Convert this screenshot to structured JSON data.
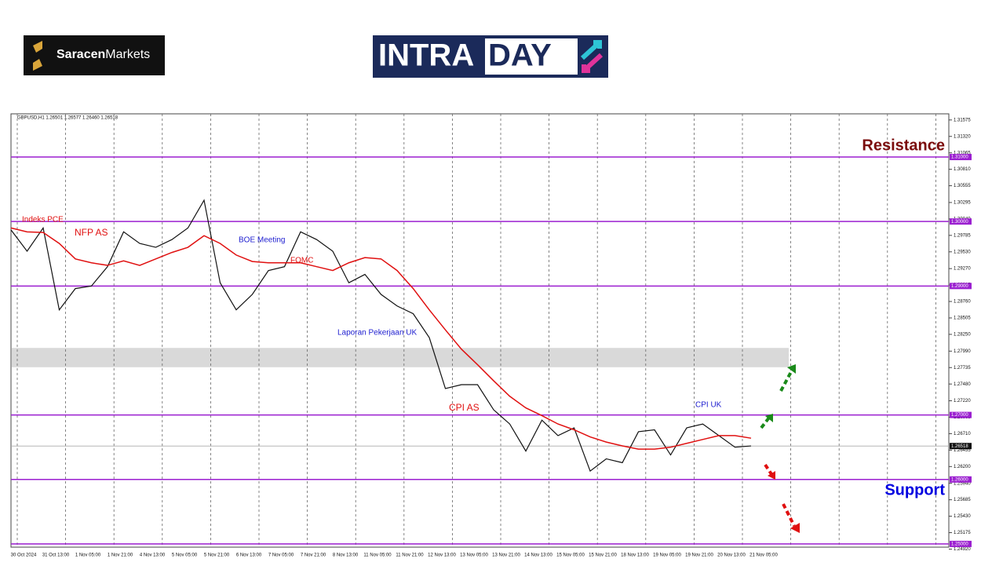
{
  "header": {
    "brand_bold": "Saracen",
    "brand_rest": "Markets",
    "logo_left": "INTRA",
    "logo_right": "DAY"
  },
  "chart_data": {
    "type": "line",
    "symbol_info": "GBPUSD,H1  1.26501 1.26577 1.26460 1.26518",
    "series": [
      {
        "name": "GBPUSD",
        "color": "#111111",
        "values": [
          1.2987,
          1.2954,
          1.299,
          1.2863,
          1.2896,
          1.29,
          1.293,
          1.2984,
          1.2966,
          1.296,
          1.2972,
          1.299,
          1.3033,
          1.2905,
          1.2863,
          1.2887,
          1.2924,
          1.293,
          1.2984,
          1.2972,
          1.2954,
          1.2905,
          1.2918,
          1.2887,
          1.2869,
          1.2857,
          1.282,
          1.2741,
          1.2747,
          1.2747,
          1.2708,
          1.2686,
          1.2644,
          1.2692,
          1.2668,
          1.268,
          1.2613,
          1.2632,
          1.2626,
          1.2674,
          1.2677,
          1.2638,
          1.268,
          1.2686,
          1.2668,
          1.265,
          1.2652
        ]
      },
      {
        "name": "MA",
        "color": "#e01010",
        "values": [
          1.299,
          1.2984,
          1.2983,
          1.2966,
          1.2942,
          1.2936,
          1.2932,
          1.2939,
          1.2932,
          1.2942,
          1.2952,
          1.296,
          1.2978,
          1.2966,
          1.2948,
          1.2938,
          1.2936,
          1.2936,
          1.2936,
          1.293,
          1.2924,
          1.2936,
          1.2944,
          1.2942,
          1.2924,
          1.2896,
          1.2863,
          1.2832,
          1.2802,
          1.2778,
          1.2753,
          1.2729,
          1.2711,
          1.2699,
          1.2686,
          1.2677,
          1.2666,
          1.2658,
          1.2652,
          1.2647,
          1.2647,
          1.265,
          1.2656,
          1.2662,
          1.2668,
          1.2668,
          1.2664
        ]
      }
    ],
    "ylim": [
      1.2495,
      1.3167
    ],
    "yticks": [
      1.31575,
      {
        "value": 1.3132,
        "label": "1.31320"
      },
      1.31065,
      {
        "value": 1.3081,
        "label": "1.30810"
      },
      1.30555,
      1.30295,
      {
        "value": 1.3004,
        "label": "1.30040"
      },
      1.29785,
      {
        "value": 1.2953,
        "label": "1.29530"
      },
      {
        "value": 1.2927,
        "label": "1.29270"
      },
      1.29015,
      {
        "value": 1.2876,
        "label": "1.28760"
      },
      1.28505,
      {
        "value": 1.2825,
        "label": "1.28250"
      },
      {
        "value": 1.2799,
        "label": "1.27990"
      },
      1.27735,
      {
        "value": 1.2748,
        "label": "1.27480"
      },
      {
        "value": 1.2722,
        "label": "1.27220"
      },
      1.26965,
      {
        "value": 1.2671,
        "label": "1.26710"
      },
      1.26455,
      {
        "value": 1.262,
        "label": "1.26200"
      },
      {
        "value": 1.2594,
        "label": "1.25940"
      },
      1.25685,
      {
        "value": 1.2543,
        "label": "1.25430"
      },
      1.25175,
      {
        "value": 1.2492,
        "label": "1.24920"
      }
    ],
    "levels": [
      {
        "value": 1.31,
        "label": "1.31000"
      },
      {
        "value": 1.3,
        "label": "1.30000"
      },
      {
        "value": 1.29,
        "label": "1.29000"
      },
      {
        "value": 1.27,
        "label": "1.27000"
      },
      {
        "value": 1.26,
        "label": "1.26000"
      },
      {
        "value": 1.25,
        "label": "1.25000"
      }
    ],
    "current_price": 1.26518,
    "zone": [
      1.2774,
      1.2804
    ],
    "time_labels": [
      "30 Oct 2024",
      "31 Oct 13:00",
      "1 Nov 05:00",
      "1 Nov 21:00",
      "4 Nov 13:00",
      "5 Nov 05:00",
      "5 Nov 21:00",
      "6 Nov 13:00",
      "7 Nov 05:00",
      "7 Nov 21:00",
      "8 Nov 13:00",
      "11 Nov 05:00",
      "11 Nov 21:00",
      "12 Nov 13:00",
      "13 Nov 05:00",
      "13 Nov 21:00",
      "14 Nov 13:00",
      "15 Nov 05:00",
      "15 Nov 21:00",
      "18 Nov 13:00",
      "19 Nov 05:00",
      "19 Nov 21:00",
      "20 Nov 13:00",
      "21 Nov 05:00"
    ],
    "annotations": [
      {
        "text": "Indeks PCE",
        "color": "#e01010"
      },
      {
        "text": "NFP AS",
        "color": "#e01010"
      },
      {
        "text": "BOE Meeting",
        "color": "#2020d0"
      },
      {
        "text": "FOMC",
        "color": "#e01010"
      },
      {
        "text": "Laporan Pekerjaan UK",
        "color": "#2020d0"
      },
      {
        "text": "CPI AS",
        "color": "#e01010"
      },
      {
        "text": "CPI UK",
        "color": "#2020d0"
      }
    ],
    "resistance_label": "Resistance",
    "support_label": "Support"
  }
}
